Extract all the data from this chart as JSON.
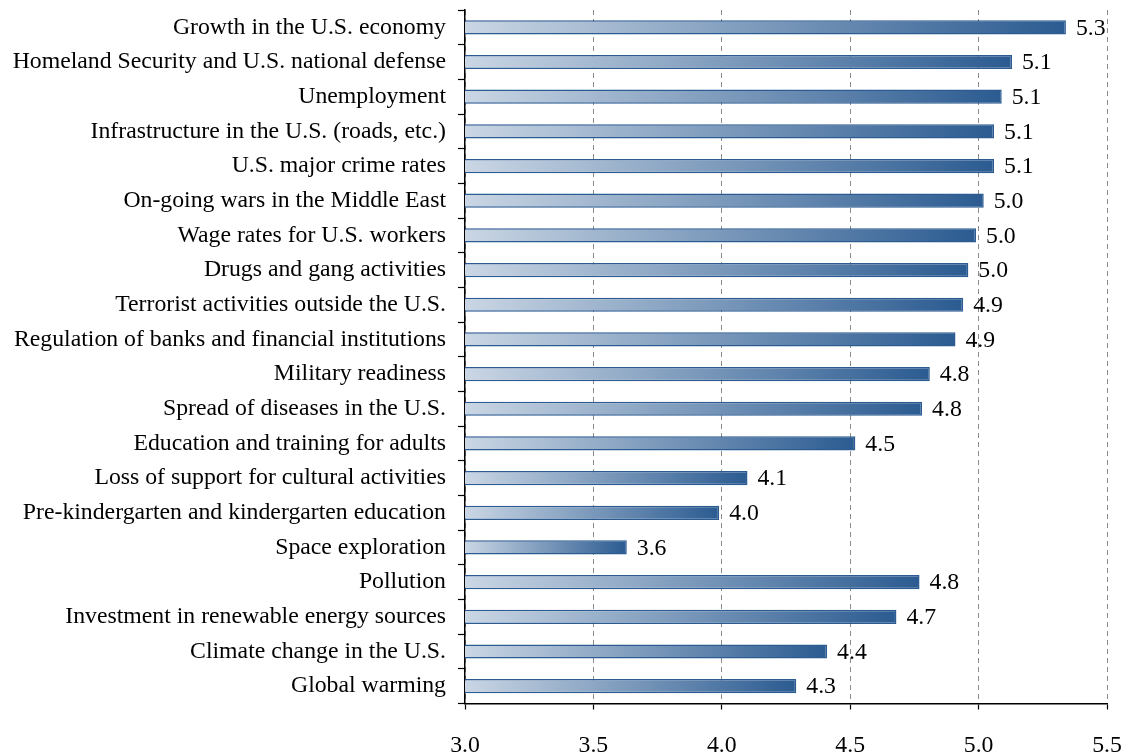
{
  "chart_data": {
    "type": "bar",
    "orientation": "horizontal",
    "categories": [
      "Growth in the U.S. economy",
      "Homeland Security and U.S. national defense",
      "Unemployment",
      "Infrastructure in the U.S. (roads, etc.)",
      "U.S. major crime rates",
      "On-going wars in the Middle East",
      "Wage rates for U.S. workers",
      "Drugs and gang activities",
      "Terrorist activities outside the U.S.",
      "Regulation of banks and financial institutions",
      "Military readiness",
      "Spread of diseases in the U.S.",
      "Education and training for adults",
      "Loss of support for cultural activities",
      "Pre-kindergarten and kindergarten education",
      "Space exploration",
      "Pollution",
      "Investment in renewable energy sources",
      "Climate change in the U.S.",
      "Global warming"
    ],
    "values": [
      5.34,
      5.13,
      5.09,
      5.06,
      5.06,
      5.02,
      4.99,
      4.96,
      4.94,
      4.91,
      4.81,
      4.78,
      4.52,
      4.1,
      3.99,
      3.63,
      4.77,
      4.68,
      4.41,
      4.29
    ],
    "value_labels": [
      "5.3",
      "5.1",
      "5.1",
      "5.1",
      "5.1",
      "5.0",
      "5.0",
      "5.0",
      "4.9",
      "4.9",
      "4.8",
      "4.8",
      "4.5",
      "4.1",
      "4.0",
      "3.6",
      "4.8",
      "4.7",
      "4.4",
      "4.3"
    ],
    "color": "#2b5b91",
    "xlim": [
      3.0,
      5.5
    ],
    "xticks": [
      {
        "value": 3,
        "label": "3.0"
      },
      3.5,
      {
        "value": 4,
        "label": "4.0"
      },
      4.5,
      {
        "value": 5,
        "label": "5.0"
      },
      5.5
    ],
    "grid": "x"
  }
}
